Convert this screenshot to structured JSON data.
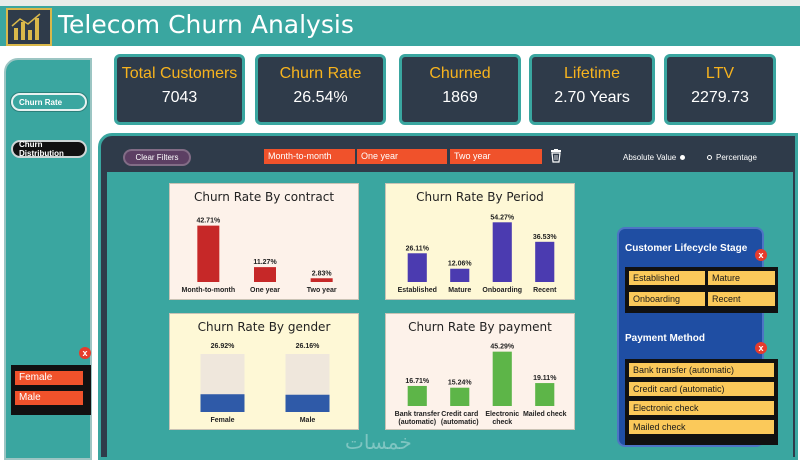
{
  "header": {
    "title": "Telecom Churn Analysis"
  },
  "sidebar": {
    "buttons": [
      {
        "label": "Churn Rate"
      },
      {
        "label": "Churn Distribution"
      }
    ],
    "gender_filter": {
      "items": [
        "Female",
        "Male"
      ],
      "clear_symbol": "x"
    }
  },
  "kpis": [
    {
      "label": "Total Customers",
      "value": "7043"
    },
    {
      "label": "Churn Rate",
      "value": "26.54%"
    },
    {
      "label": "Churned",
      "value": "1869"
    },
    {
      "label": "Lifetime",
      "value": "2.70 Years"
    },
    {
      "label": "LTV",
      "value": "2279.73"
    }
  ],
  "filters": {
    "clear_label": "Clear Filters",
    "contract_options": [
      "Month-to-month",
      "One year",
      "Two year"
    ],
    "radio": {
      "absolute": "Absolute Value",
      "percentage": "Percentage"
    }
  },
  "lifecycle": {
    "title": "Customer Lifecycle Stage",
    "clear_symbol": "x",
    "options": [
      "Established",
      "Mature",
      "Onboarding",
      "Recent"
    ]
  },
  "payment_filter": {
    "title": "Payment Method",
    "clear_symbol": "x",
    "options": [
      "Bank transfer (automatic)",
      "Credit card (automatic)",
      "Electronic check",
      "Mailed check"
    ]
  },
  "colors": {
    "teal": "#3aa6a0",
    "navy": "#2f3b4a",
    "orange": "#f0522b",
    "gold": "#f7b31e",
    "red_bar": "#c62828",
    "purple_bar": "#4b3bb0",
    "green_bar": "#5db548",
    "blue_bar": "#2f5aa8"
  },
  "chart_data": [
    {
      "type": "bar",
      "title": "Churn Rate By contract",
      "categories": [
        "Month-to-month",
        "One year",
        "Two year"
      ],
      "values": [
        42.71,
        11.27,
        2.83
      ],
      "labels": [
        "42.71%",
        "11.27%",
        "2.83%"
      ],
      "ylim": [
        0,
        50
      ]
    },
    {
      "type": "bar",
      "title": "Churn Rate By Period",
      "categories": [
        "Established",
        "Mature",
        "Onboarding",
        "Recent"
      ],
      "values": [
        26.11,
        12.06,
        54.27,
        36.53
      ],
      "labels": [
        "26.11%",
        "12.06%",
        "54.27%",
        "36.53%"
      ],
      "ylim": [
        0,
        60
      ]
    },
    {
      "type": "bar",
      "title": "Churn Rate By gender",
      "categories": [
        "Female",
        "Male"
      ],
      "values": [
        26.92,
        26.16
      ],
      "labels": [
        "26.92%",
        "26.16%"
      ],
      "ylim": [
        0,
        100
      ]
    },
    {
      "type": "bar",
      "title": "Churn Rate By payment",
      "categories": [
        "Bank transfer (automatic)",
        "Credit card (automatic)",
        "Electronic check",
        "Mailed check"
      ],
      "values": [
        16.71,
        15.24,
        45.29,
        19.11
      ],
      "labels": [
        "16.71%",
        "15.24%",
        "45.29%",
        "19.11%"
      ],
      "ylim": [
        0,
        50
      ]
    }
  ],
  "watermark": "خمسات"
}
